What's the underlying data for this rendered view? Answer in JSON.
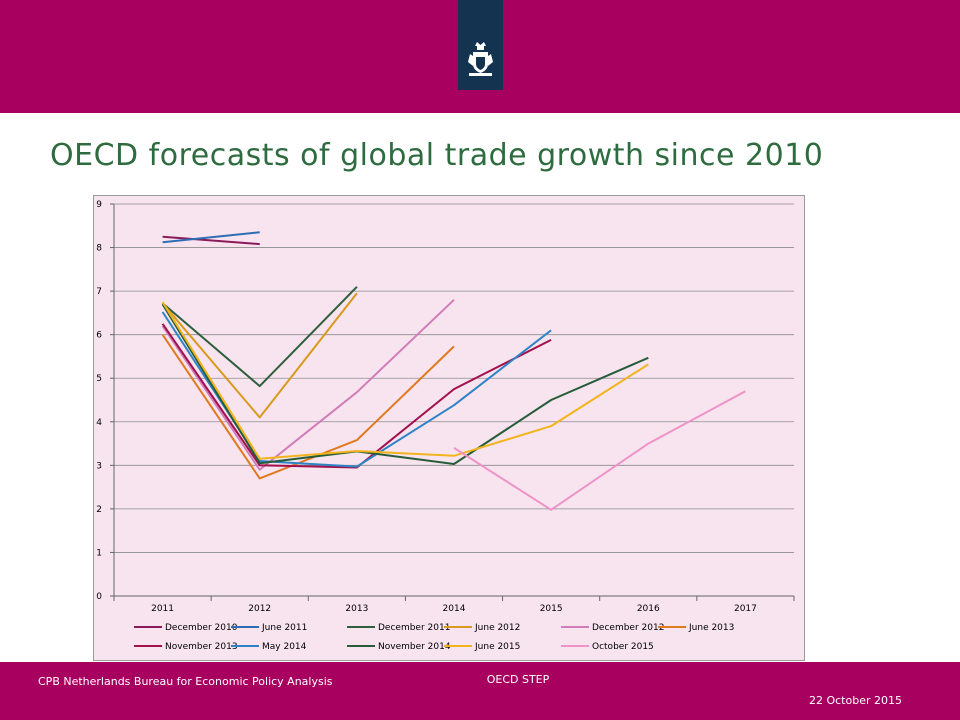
{
  "header": {
    "emblem_icon": "netherlands-government-emblem-icon",
    "bar_color": "#A8005F",
    "emblem_bg": "#143350"
  },
  "title": "OECD forecasts of global trade growth since 2010",
  "title_color": "#2E6B3F",
  "footer": {
    "org": "CPB Netherlands Bureau for Economic Policy Analysis",
    "center": "OECD STEP",
    "date": "22 October 2015",
    "bar_color": "#A8005F"
  },
  "chart_data": {
    "type": "line",
    "categories": [
      "2011",
      "2012",
      "2013",
      "2014",
      "2015",
      "2016",
      "2017"
    ],
    "ylim": [
      0,
      9
    ],
    "yticks": [
      "0",
      "1",
      "2",
      "3",
      "4",
      "5",
      "6",
      "7",
      "8",
      "9"
    ],
    "grid": true,
    "legend_position": "bottom",
    "plot_background": "#F7E4EF",
    "series": [
      {
        "name": "December 2010",
        "color": "#8B1A5A",
        "values": [
          8.25,
          8.08,
          null,
          null,
          null,
          null,
          null
        ]
      },
      {
        "name": "June 2011",
        "color": "#2E6DB4",
        "values": [
          8.12,
          8.35,
          null,
          null,
          null,
          null,
          null
        ]
      },
      {
        "name": "December 2011",
        "color": "#2F5E3C",
        "values": [
          6.72,
          4.82,
          7.1,
          null,
          null,
          null,
          null
        ]
      },
      {
        "name": "June 2012",
        "color": "#D89A1C",
        "values": [
          6.72,
          4.1,
          6.95,
          null,
          null,
          null,
          null
        ]
      },
      {
        "name": "December 2012",
        "color": "#D17DB9",
        "values": [
          6.2,
          2.9,
          4.68,
          6.8,
          null,
          null,
          null
        ]
      },
      {
        "name": "June 2013",
        "color": "#E07A1F",
        "values": [
          6.0,
          2.7,
          3.58,
          5.73,
          null,
          null,
          null
        ]
      },
      {
        "name": "November 2013",
        "color": "#A3104E",
        "values": [
          6.25,
          3.0,
          2.95,
          4.75,
          5.88,
          null,
          null
        ]
      },
      {
        "name": "May 2014",
        "color": "#2E83C6",
        "values": [
          6.52,
          3.1,
          2.97,
          4.38,
          6.1,
          null,
          null
        ]
      },
      {
        "name": "November 2014",
        "color": "#275C3A",
        "values": [
          6.7,
          3.05,
          3.32,
          3.03,
          4.5,
          5.47,
          null
        ]
      },
      {
        "name": "June 2015",
        "color": "#F2B41D",
        "values": [
          6.75,
          3.15,
          3.33,
          3.22,
          3.9,
          5.32,
          null
        ]
      },
      {
        "name": "October 2015",
        "color": "#EE93C8",
        "values": [
          null,
          null,
          null,
          3.4,
          1.98,
          3.5,
          4.7
        ]
      }
    ]
  }
}
